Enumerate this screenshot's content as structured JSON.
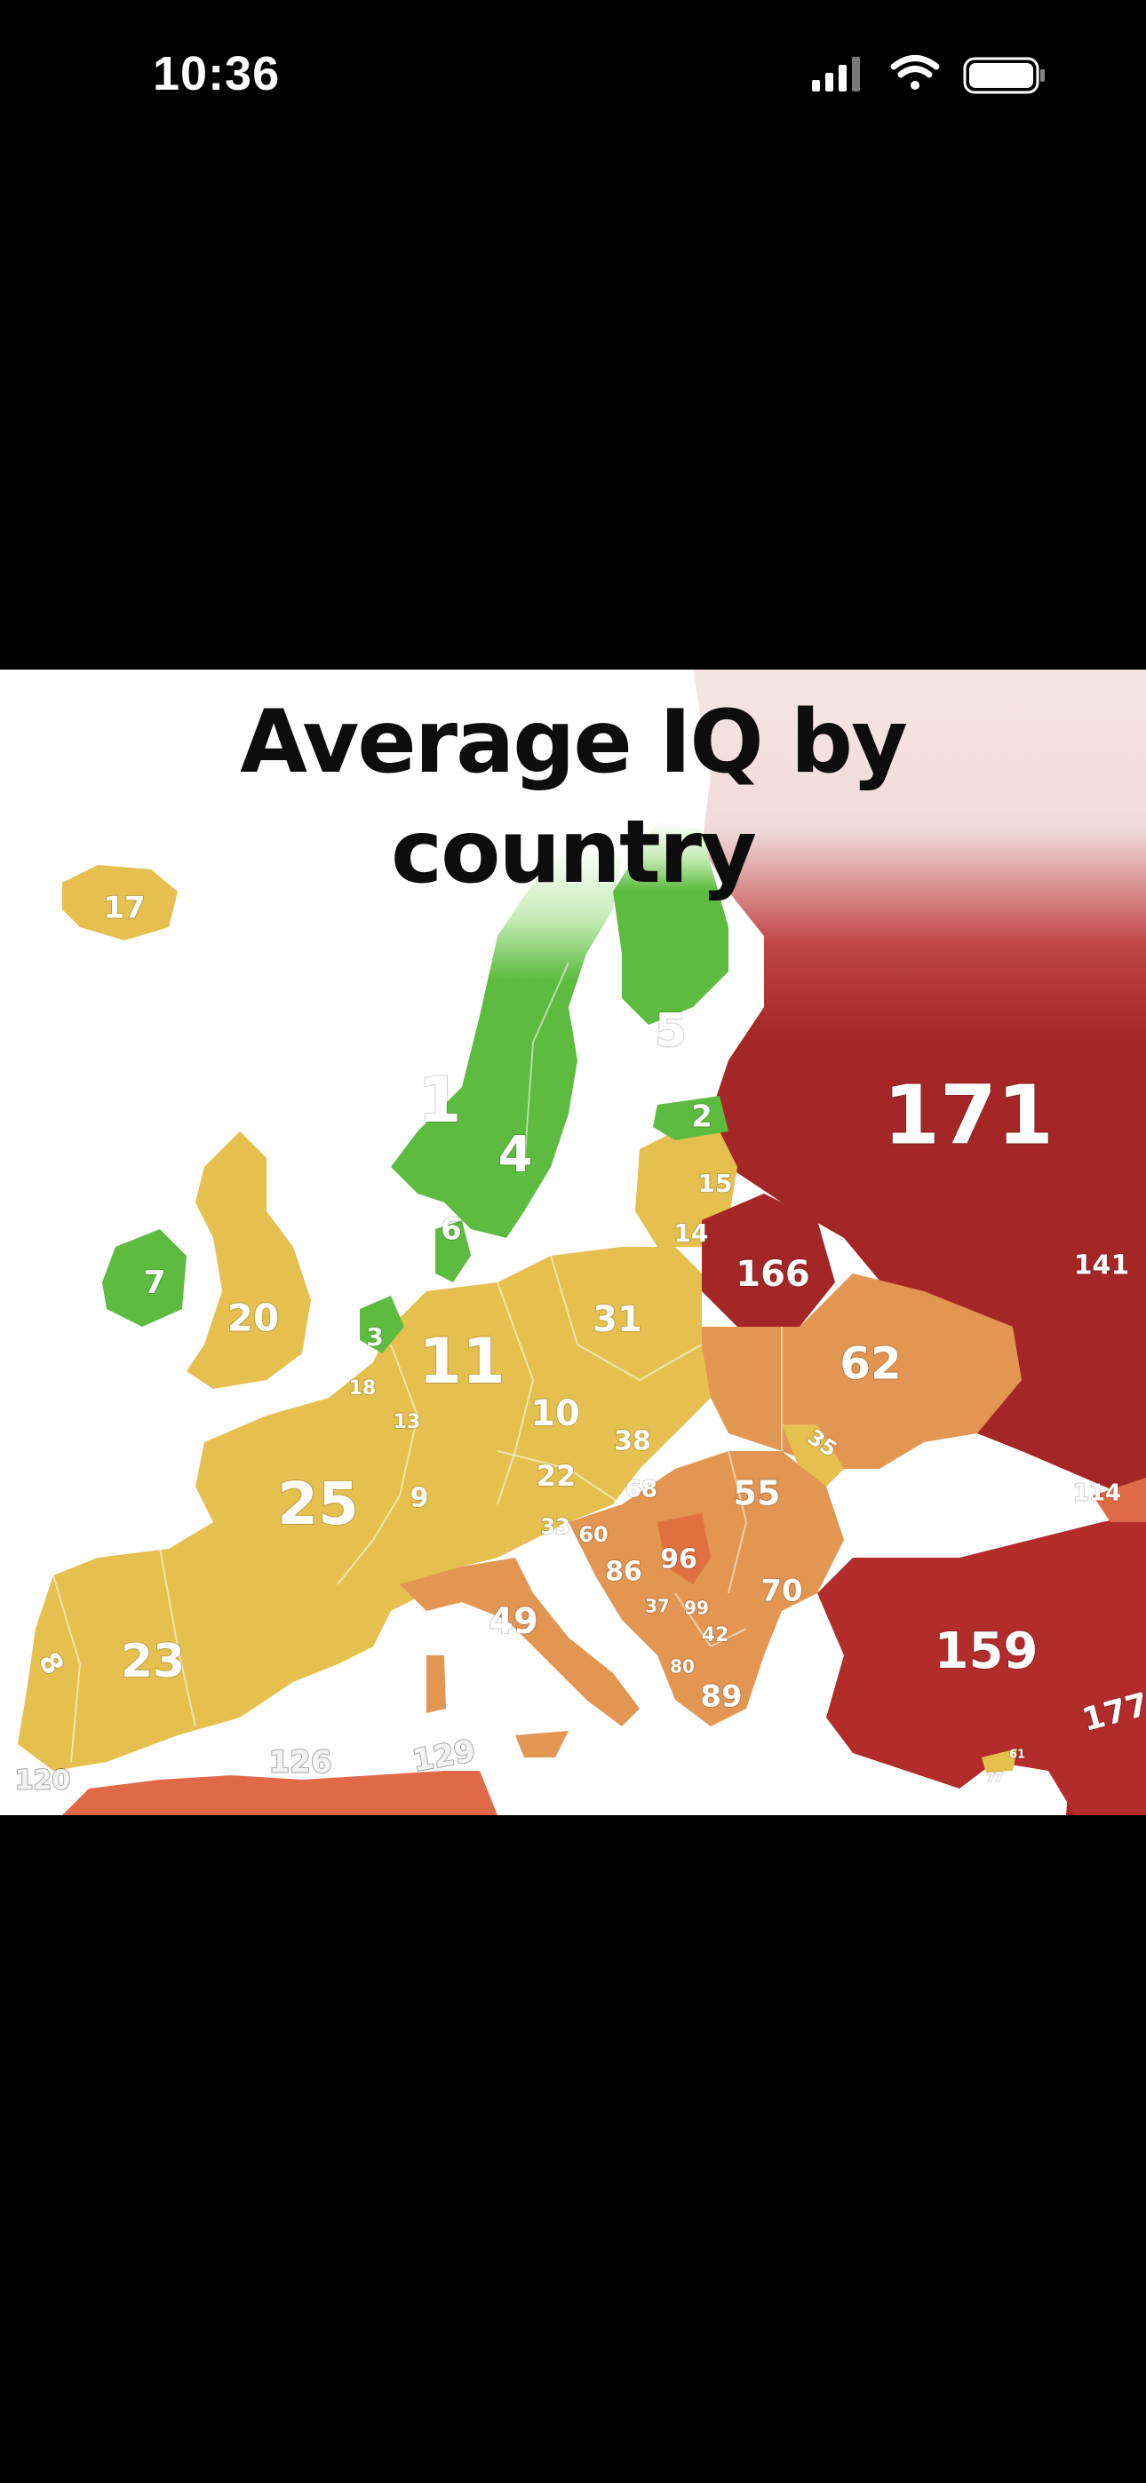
{
  "status_bar": {
    "time": "10:36",
    "icons": [
      "cellular-signal-icon",
      "wifi-icon",
      "battery-icon"
    ]
  },
  "map": {
    "title": "Average IQ by country",
    "colors": {
      "rank_green": "#5dbb3f",
      "rank_yellow": "#e5c04e",
      "rank_orange": "#e39552",
      "rank_red": "#a52626"
    },
    "labels": [
      {
        "id": "iceland",
        "text": "17"
      },
      {
        "id": "finland",
        "text": "5"
      },
      {
        "id": "norway",
        "text": "1"
      },
      {
        "id": "sweden",
        "text": "4"
      },
      {
        "id": "estonia",
        "text": "2"
      },
      {
        "id": "latvia",
        "text": "15"
      },
      {
        "id": "lithuania",
        "text": "14"
      },
      {
        "id": "russia",
        "text": "171"
      },
      {
        "id": "belarus",
        "text": "166"
      },
      {
        "id": "kazakhstan",
        "text": "141"
      },
      {
        "id": "denmark",
        "text": "6"
      },
      {
        "id": "ireland",
        "text": "7"
      },
      {
        "id": "uk",
        "text": "20"
      },
      {
        "id": "netherlands",
        "text": "3"
      },
      {
        "id": "germany",
        "text": "11"
      },
      {
        "id": "poland",
        "text": "31"
      },
      {
        "id": "ukraine",
        "text": "62"
      },
      {
        "id": "belgium",
        "text": "18"
      },
      {
        "id": "luxembourg",
        "text": "13"
      },
      {
        "id": "czechia",
        "text": "10"
      },
      {
        "id": "slovakia",
        "text": "38"
      },
      {
        "id": "moldova",
        "text": "35"
      },
      {
        "id": "georgia",
        "text": "114"
      },
      {
        "id": "france",
        "text": "25"
      },
      {
        "id": "switzerland",
        "text": "9"
      },
      {
        "id": "austria",
        "text": "22"
      },
      {
        "id": "hungary",
        "text": "68"
      },
      {
        "id": "romania",
        "text": "55"
      },
      {
        "id": "slovenia",
        "text": "33"
      },
      {
        "id": "croatia",
        "text": "60"
      },
      {
        "id": "bosnia",
        "text": "86"
      },
      {
        "id": "serbia",
        "text": "96"
      },
      {
        "id": "bulgaria",
        "text": "70"
      },
      {
        "id": "montenegro",
        "text": "37"
      },
      {
        "id": "kosovo",
        "text": "99"
      },
      {
        "id": "macedonia",
        "text": "42"
      },
      {
        "id": "albania",
        "text": "80"
      },
      {
        "id": "greece",
        "text": "89"
      },
      {
        "id": "italy",
        "text": "49"
      },
      {
        "id": "turkey",
        "text": "159"
      },
      {
        "id": "armenia",
        "text": "177"
      },
      {
        "id": "portugal",
        "text": "8"
      },
      {
        "id": "spain",
        "text": "23"
      },
      {
        "id": "morocco",
        "text": "120"
      },
      {
        "id": "algeria",
        "text": "126"
      },
      {
        "id": "tunisia",
        "text": "129"
      },
      {
        "id": "cyprus",
        "text": "61"
      },
      {
        "id": "cyprus_n",
        "text": "77"
      }
    ]
  }
}
